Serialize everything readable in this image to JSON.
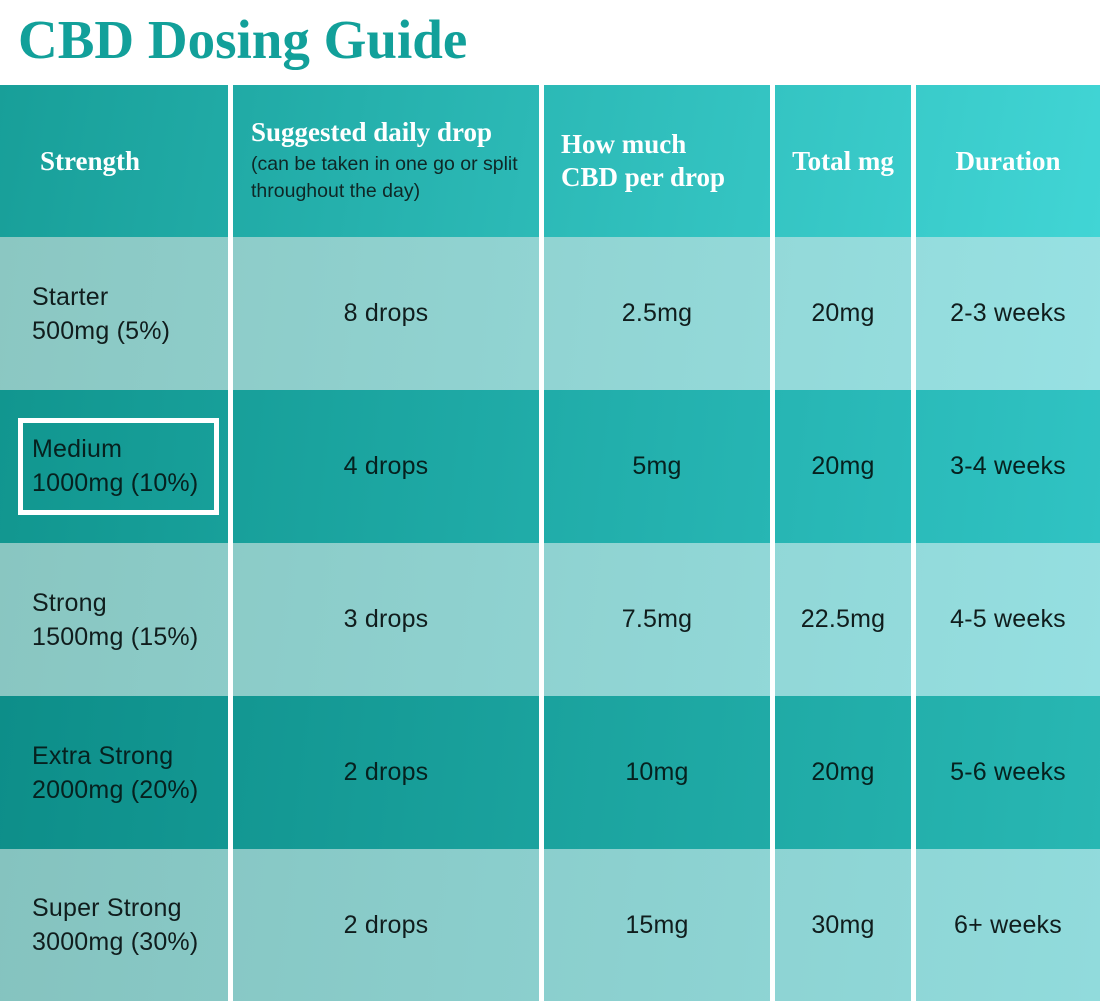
{
  "title": "CBD Dosing Guide",
  "colors": {
    "title_teal": "#12a09a",
    "header_gradient_left": "#189f99",
    "header_gradient_right": "#41d5d5",
    "light_row_left": "#8bc7c2",
    "light_row_right": "#97e1e3",
    "dark_row_left": "#11968f",
    "dark_row_right": "#30c3c3",
    "separator_white": "#ffffff",
    "body_text": "#101d1d"
  },
  "table": {
    "headers": [
      {
        "label": "Strength",
        "note": ""
      },
      {
        "label": "Suggested daily drop",
        "note": "(can be taken in one go or split throughout the day)"
      },
      {
        "label": "How much CBD per drop",
        "note": ""
      },
      {
        "label": "Total mg",
        "note": ""
      },
      {
        "label": "Duration",
        "note": ""
      }
    ],
    "rows": [
      {
        "name": "Starter",
        "detail": "500mg (5%)",
        "drops": "8 drops",
        "per_drop": "2.5mg",
        "total": "20mg",
        "duration": "2-3 weeks",
        "highlighted": false
      },
      {
        "name": "Medium",
        "detail": "1000mg (10%)",
        "drops": "4 drops",
        "per_drop": "5mg",
        "total": "20mg",
        "duration": "3-4 weeks",
        "highlighted": true
      },
      {
        "name": "Strong",
        "detail": "1500mg (15%)",
        "drops": "3 drops",
        "per_drop": "7.5mg",
        "total": "22.5mg",
        "duration": "4-5 weeks",
        "highlighted": false
      },
      {
        "name": "Extra Strong",
        "detail": "2000mg (20%)",
        "drops": "2 drops",
        "per_drop": "10mg",
        "total": "20mg",
        "duration": "5-6 weeks",
        "highlighted": false
      },
      {
        "name": "Super Strong",
        "detail": "3000mg (30%)",
        "drops": "2 drops",
        "per_drop": "15mg",
        "total": "30mg",
        "duration": "6+ weeks",
        "highlighted": false
      }
    ]
  },
  "chart_data": {
    "type": "table",
    "title": "CBD Dosing Guide",
    "columns": [
      "Strength",
      "Suggested daily drop (can be taken in one go or split throughout the day)",
      "How much CBD per drop",
      "Total mg",
      "Duration"
    ],
    "rows": [
      [
        "Starter 500mg (5%)",
        "8 drops",
        "2.5mg",
        "20mg",
        "2-3 weeks"
      ],
      [
        "Medium 1000mg (10%)",
        "4 drops",
        "5mg",
        "20mg",
        "3-4 weeks"
      ],
      [
        "Strong 1500mg (15%)",
        "3 drops",
        "7.5mg",
        "22.5mg",
        "4-5 weeks"
      ],
      [
        "Extra Strong 2000mg (20%)",
        "2 drops",
        "10mg",
        "20mg",
        "5-6 weeks"
      ],
      [
        "Super Strong 3000mg (30%)",
        "2 drops",
        "15mg",
        "30mg",
        "6+ weeks"
      ]
    ],
    "highlighted_row": "Medium 1000mg (10%)",
    "legend_position": "none",
    "grid": "white column separators only"
  }
}
